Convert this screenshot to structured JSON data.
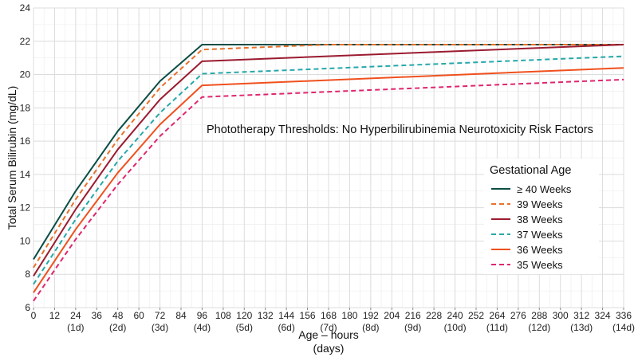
{
  "chart_data": {
    "type": "line",
    "annotation": "Phototherapy Thresholds:  No Hyperbilirubinemia Neurotoxicity Risk Factors",
    "xlabel": "Age – hours",
    "xlabel_sub": "(days)",
    "ylabel": "Total Serum Bilirubin (mg/dL)",
    "xlim": [
      0,
      336
    ],
    "ylim": [
      6,
      24
    ],
    "grid": true,
    "legend_placement": "right",
    "x_ticks": [
      0,
      12,
      24,
      36,
      48,
      60,
      72,
      84,
      96,
      108,
      120,
      132,
      144,
      156,
      168,
      180,
      192,
      204,
      216,
      228,
      240,
      252,
      264,
      276,
      288,
      300,
      312,
      324,
      336
    ],
    "x_tick_labels": [
      "0",
      "12",
      "24",
      "36",
      "48",
      "60",
      "72",
      "84",
      "96",
      "108",
      "120",
      "132",
      "144",
      "156",
      "168",
      "180",
      "192",
      "204",
      "216",
      "228",
      "240",
      "252",
      "264",
      "276",
      "288",
      "300",
      "312",
      "324",
      "336"
    ],
    "x_day_ticks": [
      24,
      48,
      72,
      96,
      120,
      144,
      168,
      192,
      216,
      240,
      264,
      288,
      312,
      336
    ],
    "x_day_labels": [
      "(1d)",
      "(2d)",
      "(3d)",
      "(4d)",
      "(5d)",
      "(6d)",
      "(7d)",
      "(8d)",
      "(9d)",
      "(10d)",
      "(11d)",
      "(12d)",
      "(13d)",
      "(14d)"
    ],
    "y_ticks": [
      6,
      8,
      10,
      12,
      14,
      16,
      18,
      20,
      22,
      24
    ],
    "y_tick_labels": [
      "6",
      "8",
      "10",
      "12",
      "14",
      "16",
      "18",
      "20",
      "22",
      "24"
    ],
    "legend_title": "Gestational Age",
    "series": [
      {
        "name": "≥ 40 Weeks",
        "color": "#0b4d45",
        "dash": "solid",
        "points": [
          [
            0,
            8.9
          ],
          [
            24,
            13.0
          ],
          [
            48,
            16.6
          ],
          [
            72,
            19.6
          ],
          [
            96,
            21.8
          ],
          [
            336,
            21.8
          ]
        ]
      },
      {
        "name": "39 Weeks",
        "color": "#e8702a",
        "dash": "dashed",
        "points": [
          [
            0,
            8.4
          ],
          [
            24,
            12.5
          ],
          [
            48,
            16.1
          ],
          [
            72,
            19.2
          ],
          [
            96,
            21.5
          ],
          [
            168,
            21.8
          ],
          [
            336,
            21.8
          ]
        ]
      },
      {
        "name": "38 Weeks",
        "color": "#9b1b30",
        "dash": "solid",
        "points": [
          [
            0,
            7.9
          ],
          [
            24,
            11.9
          ],
          [
            48,
            15.5
          ],
          [
            72,
            18.5
          ],
          [
            96,
            20.8
          ],
          [
            336,
            21.8
          ]
        ]
      },
      {
        "name": "37 Weeks",
        "color": "#26a8a8",
        "dash": "dashed",
        "points": [
          [
            0,
            7.4
          ],
          [
            24,
            11.3
          ],
          [
            48,
            14.8
          ],
          [
            72,
            17.7
          ],
          [
            96,
            20.05
          ],
          [
            336,
            21.1
          ]
        ]
      },
      {
        "name": "36 Weeks",
        "color": "#f0501e",
        "dash": "solid",
        "points": [
          [
            0,
            6.9
          ],
          [
            24,
            10.7
          ],
          [
            48,
            14.1
          ],
          [
            72,
            17.0
          ],
          [
            96,
            19.35
          ],
          [
            336,
            20.4
          ]
        ]
      },
      {
        "name": "35 Weeks",
        "color": "#e0256e",
        "dash": "dashed",
        "points": [
          [
            0,
            6.4
          ],
          [
            24,
            10.1
          ],
          [
            48,
            13.4
          ],
          [
            72,
            16.3
          ],
          [
            96,
            18.65
          ],
          [
            336,
            19.7
          ]
        ]
      }
    ]
  }
}
